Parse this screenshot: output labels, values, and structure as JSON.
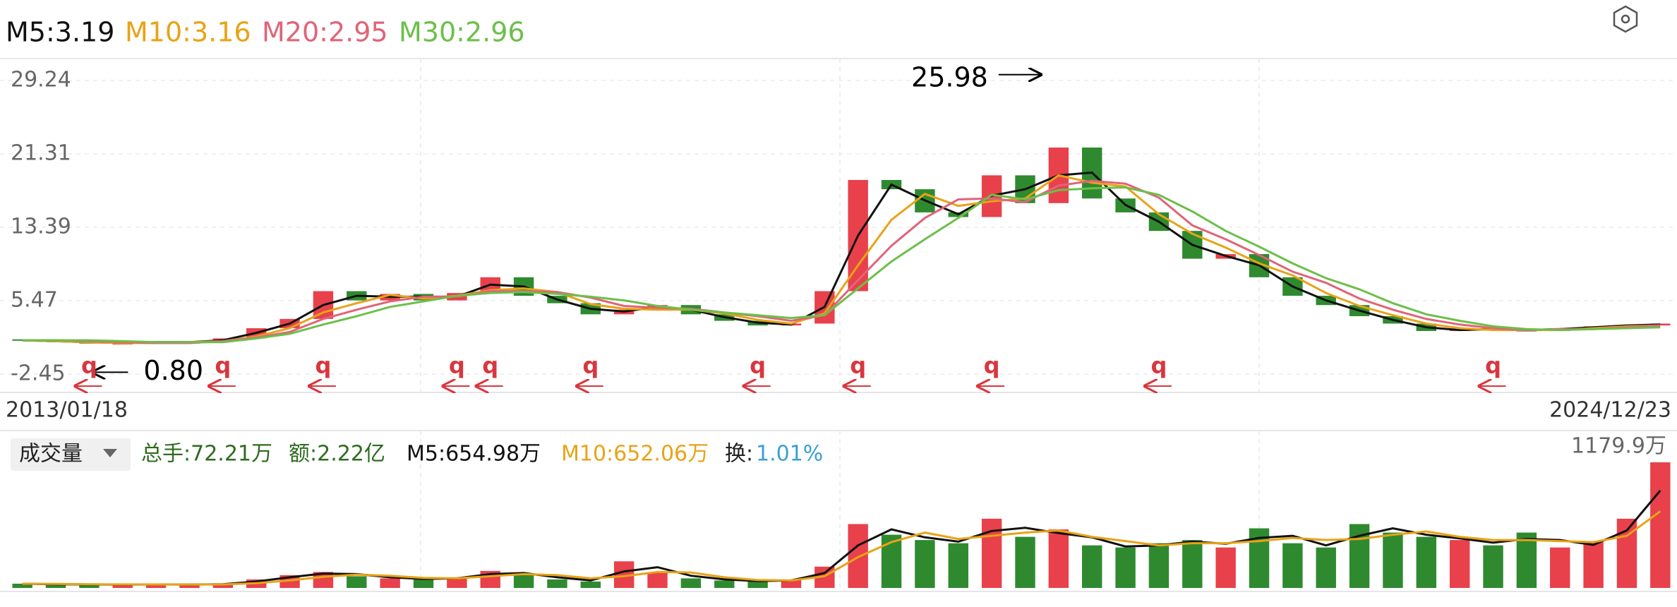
{
  "chart_data": [
    {
      "type": "candlestick",
      "categories": [
        "2013/01/18",
        null,
        null,
        null,
        null,
        null,
        null,
        null,
        null,
        null,
        null,
        null,
        null,
        null,
        null,
        null,
        null,
        null,
        null,
        null,
        null,
        null,
        null,
        null,
        null,
        null,
        null,
        null,
        null,
        null,
        null,
        null,
        null,
        null,
        null,
        null,
        null,
        null,
        null,
        null,
        null,
        null,
        null,
        null,
        null,
        null,
        null,
        null,
        null,
        "2024/12/23"
      ],
      "open": [
        1.3,
        1.2,
        1.0,
        0.9,
        0.9,
        1.0,
        1.0,
        1.4,
        2.5,
        3.5,
        6.5,
        5.5,
        6.2,
        5.5,
        6.3,
        8.0,
        6.0,
        5.2,
        4.0,
        4.5,
        5.0,
        4.0,
        3.3,
        2.8,
        3.0,
        6.5,
        18.5,
        17.5,
        15.0,
        14.5,
        19.0,
        16.0,
        22.0,
        16.5,
        15.0,
        13.0,
        10.0,
        10.5,
        8.0,
        6.0,
        5.0,
        3.8,
        3.0,
        2.2,
        2.4,
        2.3,
        2.2,
        2.5,
        2.7,
        2.8
      ],
      "close": [
        1.2,
        1.0,
        0.9,
        0.9,
        1.0,
        1.0,
        1.4,
        2.5,
        3.5,
        6.5,
        5.5,
        6.2,
        5.5,
        6.3,
        8.0,
        6.0,
        5.2,
        4.0,
        4.5,
        5.0,
        4.0,
        3.3,
        2.8,
        3.0,
        6.5,
        18.5,
        17.5,
        15.0,
        14.5,
        19.0,
        16.0,
        22.0,
        16.5,
        15.0,
        13.0,
        10.0,
        10.5,
        8.0,
        6.0,
        5.0,
        3.8,
        3.0,
        2.2,
        2.4,
        2.3,
        2.2,
        2.5,
        2.7,
        2.8,
        3.0
      ],
      "series": [
        {
          "name": "M5:3.19",
          "color": "#111111",
          "values": [
            1.2,
            1.1,
            1.0,
            0.9,
            1.0,
            1.0,
            1.2,
            2.0,
            3.0,
            5.0,
            6.0,
            5.9,
            5.9,
            5.9,
            7.2,
            7.0,
            5.6,
            4.6,
            4.3,
            4.8,
            4.5,
            3.7,
            3.1,
            2.9,
            4.8,
            12.5,
            18.0,
            16.3,
            14.8,
            16.8,
            17.5,
            19.0,
            19.3,
            15.8,
            14.0,
            11.5,
            10.3,
            9.3,
            7.0,
            5.5,
            4.4,
            3.4,
            2.6,
            2.3,
            2.4,
            2.3,
            2.4,
            2.6,
            2.8,
            2.9
          ]
        },
        {
          "name": "M10:3.16",
          "color": "#e8a317",
          "values": [
            1.2,
            1.1,
            1.0,
            0.9,
            0.9,
            1.0,
            1.1,
            1.6,
            2.5,
            4.2,
            5.2,
            6.1,
            5.7,
            6.0,
            6.6,
            6.8,
            6.4,
            5.1,
            4.6,
            4.5,
            4.5,
            4.1,
            3.4,
            3.0,
            4.1,
            9.3,
            14.2,
            17.0,
            15.7,
            16.2,
            16.5,
            19.0,
            18.2,
            17.8,
            14.8,
            12.7,
            11.2,
            9.5,
            8.2,
            6.3,
            4.9,
            3.9,
            3.0,
            2.5,
            2.3,
            2.3,
            2.3,
            2.5,
            2.7,
            2.8
          ]
        },
        {
          "name": "M20:2.95",
          "color": "#e06478",
          "values": [
            1.2,
            1.2,
            1.1,
            1.0,
            0.9,
            0.9,
            1.1,
            1.5,
            2.1,
            3.5,
            4.5,
            5.4,
            5.9,
            5.9,
            6.5,
            6.5,
            6.4,
            5.8,
            4.9,
            4.7,
            4.6,
            4.2,
            3.8,
            3.3,
            3.9,
            7.7,
            11.4,
            14.4,
            16.4,
            16.5,
            16.1,
            17.9,
            18.4,
            18.1,
            16.6,
            13.6,
            12.1,
            10.4,
            8.6,
            7.4,
            5.7,
            4.5,
            3.5,
            2.9,
            2.5,
            2.3,
            2.4,
            2.4,
            2.6,
            2.8
          ]
        },
        {
          "name": "M30:2.96",
          "color": "#6cbf4a",
          "values": [
            1.2,
            1.2,
            1.2,
            1.1,
            1.0,
            1.0,
            1.0,
            1.4,
            1.9,
            2.9,
            3.8,
            4.8,
            5.4,
            6.0,
            6.3,
            6.4,
            6.2,
            5.9,
            5.5,
            4.9,
            4.5,
            4.2,
            3.9,
            3.6,
            3.9,
            6.8,
            9.7,
            12.1,
            14.4,
            16.9,
            16.4,
            17.4,
            17.6,
            17.7,
            16.9,
            15.1,
            13.0,
            11.3,
            9.5,
            7.9,
            6.7,
            5.2,
            4.0,
            3.3,
            2.7,
            2.4,
            2.3,
            2.4,
            2.5,
            2.6
          ]
        }
      ],
      "ylim": [
        -4.43,
        31.6
      ],
      "yticks": [
        -2.45,
        5.47,
        13.39,
        21.31,
        29.24
      ],
      "grid": true,
      "up_color": "#e8414b",
      "down_color": "#2f8a2f",
      "annotations": [
        {
          "index": 31,
          "value": 25.98,
          "label": "25.98"
        },
        {
          "index": 2,
          "value": 0.8,
          "label": "0.80"
        }
      ],
      "events": [
        {
          "index": 2,
          "label": "q"
        },
        {
          "index": 6,
          "label": "q"
        },
        {
          "index": 9,
          "label": "q"
        },
        {
          "index": 13,
          "label": "q"
        },
        {
          "index": 14,
          "label": "q"
        },
        {
          "index": 17,
          "label": "q"
        },
        {
          "index": 22,
          "label": "q"
        },
        {
          "index": 25,
          "label": "q"
        },
        {
          "index": 29,
          "label": "q"
        },
        {
          "index": 34,
          "label": "q"
        },
        {
          "index": 44,
          "label": "q"
        }
      ]
    },
    {
      "type": "bar",
      "title": "成交量",
      "stats": [
        {
          "label": "总手:72.21万",
          "color": "#2e6b1f"
        },
        {
          "label": "额:2.22亿",
          "color": "#2e6b1f"
        }
      ],
      "turnover": [
        {
          "label": "换:",
          "color": "#222222"
        },
        {
          "label": "1.01%",
          "color": "#3a9fd6"
        }
      ],
      "values": [
        40,
        30,
        30,
        30,
        35,
        30,
        40,
        80,
        120,
        150,
        110,
        90,
        80,
        100,
        160,
        120,
        80,
        60,
        250,
        140,
        90,
        70,
        60,
        80,
        200,
        600,
        500,
        450,
        420,
        650,
        480,
        550,
        400,
        380,
        420,
        450,
        380,
        560,
        420,
        380,
        600,
        520,
        480,
        450,
        400,
        520,
        380,
        430,
        650,
        1179.9
      ],
      "series": [
        {
          "name": "M5:654.98万",
          "color": "#111111",
          "values": [
            40,
            35,
            33,
            32,
            33,
            32,
            35,
            60,
            100,
            135,
            130,
            100,
            85,
            90,
            130,
            140,
            100,
            70,
            155,
            195,
            115,
            80,
            65,
            70,
            140,
            400,
            550,
            475,
            435,
            535,
            565,
            515,
            475,
            390,
            400,
            435,
            415,
            470,
            490,
            400,
            490,
            560,
            500,
            465,
            425,
            460,
            450,
            405,
            540,
            915
          ]
        },
        {
          "name": "M10:652.06万",
          "color": "#e8a317",
          "values": [
            40,
            38,
            35,
            33,
            33,
            32,
            33,
            45,
            70,
            105,
            125,
            115,
            95,
            90,
            110,
            130,
            120,
            90,
            110,
            150,
            145,
            100,
            75,
            70,
            110,
            290,
            430,
            520,
            460,
            490,
            520,
            540,
            480,
            440,
            400,
            420,
            420,
            440,
            470,
            450,
            460,
            500,
            530,
            480,
            450,
            450,
            440,
            430,
            490,
            720
          ]
        }
      ],
      "ylim": [
        0,
        1179.9
      ],
      "yticks": [
        {
          "value": 1179.9,
          "label": "1179.9万"
        }
      ]
    }
  ]
}
